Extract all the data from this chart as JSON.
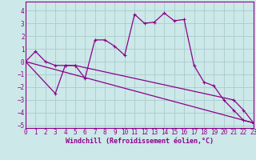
{
  "title": "",
  "xlabel": "Windchill (Refroidissement éolien,°C)",
  "bg_color": "#cce8e8",
  "line_color": "#8b008b",
  "grid_color": "#aacccc",
  "xlim": [
    0,
    23
  ],
  "ylim": [
    -5.2,
    4.7
  ],
  "yticks": [
    -5,
    -4,
    -3,
    -2,
    -1,
    0,
    1,
    2,
    3,
    4
  ],
  "xticks": [
    0,
    1,
    2,
    3,
    4,
    5,
    6,
    7,
    8,
    9,
    10,
    11,
    12,
    13,
    14,
    15,
    16,
    17,
    18,
    19,
    20,
    21,
    22,
    23
  ],
  "series1_x": [
    0,
    1,
    2,
    3,
    4,
    5,
    6,
    7,
    8,
    9,
    10,
    11,
    12,
    13,
    14,
    15,
    16,
    17,
    18,
    19,
    20,
    21,
    22,
    23
  ],
  "series1_y": [
    0.0,
    0.8,
    0.0,
    -0.3,
    -0.3,
    -0.3,
    -1.3,
    1.7,
    1.7,
    1.2,
    0.5,
    3.7,
    3.0,
    3.1,
    3.8,
    3.2,
    3.3,
    -0.3,
    -1.6,
    -1.9,
    -3.0,
    -3.8,
    -4.6,
    -4.8
  ],
  "series2_x": [
    0,
    3,
    4,
    5,
    21,
    22,
    23
  ],
  "series2_y": [
    0.0,
    -2.5,
    -0.3,
    -0.3,
    -3.0,
    -3.8,
    -4.8
  ],
  "series3_x": [
    0,
    23
  ],
  "series3_y": [
    0.0,
    -4.8
  ],
  "tick_fontsize": 5.5,
  "xlabel_fontsize": 6.0,
  "linewidth": 0.9,
  "markersize": 3,
  "markeredgewidth": 0.8
}
